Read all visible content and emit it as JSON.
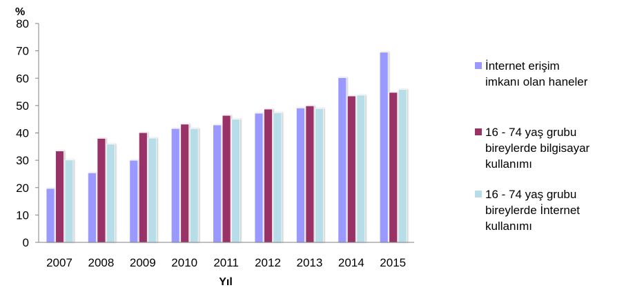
{
  "chart_data": {
    "type": "bar",
    "title": "",
    "ylabel": "%",
    "xlabel": "Yıl",
    "ylim": [
      0,
      80
    ],
    "yticks": [
      0,
      10,
      20,
      30,
      40,
      50,
      60,
      70,
      80
    ],
    "grid": false,
    "legend_position": "right",
    "categories": [
      "2007",
      "2008",
      "2009",
      "2010",
      "2011",
      "2012",
      "2013",
      "2014",
      "2015"
    ],
    "series": [
      {
        "name": "İnternet erişim imkanı olan haneler",
        "legend_lines": [
          "İnternet erişim",
          "imkanı olan haneler"
        ],
        "color": "#9999ff",
        "values": [
          19.7,
          25.4,
          30.0,
          41.6,
          42.9,
          47.2,
          49.1,
          60.2,
          69.5
        ]
      },
      {
        "name": "16 - 74 yaş grubu bireylerde bilgisayar kullanımı",
        "legend_lines": [
          "16 - 74 yaş grubu",
          "bireylerde bilgisayar",
          "kullanımı"
        ],
        "color": "#993366",
        "values": [
          33.4,
          38.0,
          40.1,
          43.2,
          46.4,
          48.7,
          49.9,
          53.5,
          54.8
        ]
      },
      {
        "name": "16 - 74 yaş grubu bireylerde İnternet kullanımı",
        "legend_lines": [
          "16 - 74 yaş grubu",
          "bireylerde İnternet",
          "kullanımı"
        ],
        "color": "#b7dee8",
        "values": [
          30.1,
          35.9,
          38.1,
          41.6,
          45.0,
          47.4,
          48.9,
          53.8,
          55.9
        ]
      }
    ]
  }
}
